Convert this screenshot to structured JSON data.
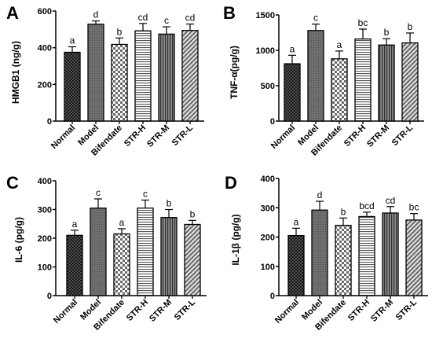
{
  "chart_data": [
    {
      "panel": "A",
      "type": "bar",
      "ylabel": "HMGB1 (ng/g)",
      "categories": [
        "Normal",
        "Model",
        "Bifendate",
        "STR-H",
        "STR-M",
        "STR-L"
      ],
      "values": [
        375,
        528,
        418,
        492,
        474,
        494
      ],
      "errors": [
        30,
        18,
        35,
        40,
        40,
        35
      ],
      "significance": [
        "a",
        "d",
        "b",
        "cd",
        "c",
        "cd"
      ],
      "ylim": [
        0,
        600
      ],
      "yticks": [
        0,
        200,
        400,
        600
      ],
      "patterns": [
        "dots",
        "dark-gray",
        "checker",
        "hlines",
        "vlines",
        "diag"
      ]
    },
    {
      "panel": "B",
      "type": "bar",
      "ylabel": "TNF-α(pg/g)",
      "categories": [
        "Normal",
        "Model",
        "Bifendate",
        "STR-H",
        "STR-M",
        "STR-L"
      ],
      "values": [
        810,
        1280,
        880,
        1160,
        1075,
        1105
      ],
      "errors": [
        120,
        90,
        110,
        140,
        90,
        140
      ],
      "significance": [
        "a",
        "c",
        "a",
        "bc",
        "b",
        "b"
      ],
      "ylim": [
        0,
        1500
      ],
      "yticks": [
        0,
        500,
        1000,
        1500
      ],
      "patterns": [
        "dots",
        "dark-gray",
        "checker",
        "hlines",
        "vlines",
        "diag"
      ]
    },
    {
      "panel": "C",
      "type": "bar",
      "ylabel": "IL-6 (pg/g)",
      "categories": [
        "Normal",
        "Model",
        "Bifendate",
        "STR-H",
        "STR-M",
        "STR-L"
      ],
      "values": [
        210,
        305,
        215,
        305,
        272,
        248
      ],
      "errors": [
        18,
        32,
        18,
        28,
        28,
        14
      ],
      "significance": [
        "a",
        "c",
        "a",
        "c",
        "b",
        "b"
      ],
      "ylim": [
        0,
        400
      ],
      "yticks": [
        0,
        100,
        200,
        300,
        400
      ],
      "patterns": [
        "dots",
        "dark-gray",
        "checker",
        "hlines",
        "vlines",
        "diag"
      ]
    },
    {
      "panel": "D",
      "type": "bar",
      "ylabel": "IL-1β (pg/g)",
      "categories": [
        "Normal",
        "Model",
        "Bifendate",
        "STR-H",
        "STR-M",
        "STR-L"
      ],
      "values": [
        205,
        292,
        240,
        270,
        282,
        258
      ],
      "errors": [
        25,
        30,
        25,
        15,
        22,
        22
      ],
      "significance": [
        "a",
        "d",
        "b",
        "bcd",
        "cd",
        "bc"
      ],
      "ylim": [
        0,
        400
      ],
      "yticks": [
        0,
        100,
        200,
        300,
        400
      ],
      "patterns": [
        "dots",
        "dark-gray",
        "checker",
        "hlines",
        "vlines",
        "diag"
      ]
    }
  ]
}
